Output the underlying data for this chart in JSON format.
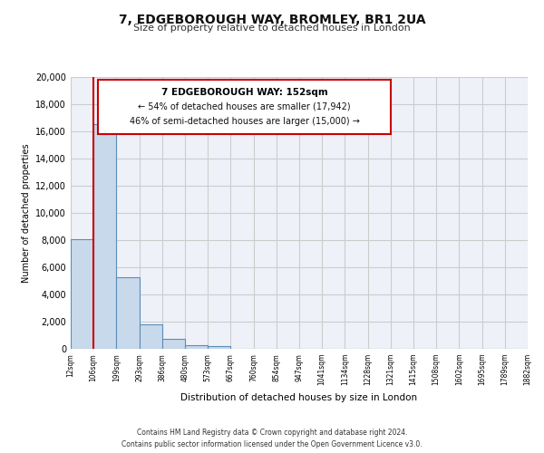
{
  "title": "7, EDGEBOROUGH WAY, BROMLEY, BR1 2UA",
  "subtitle": "Size of property relative to detached houses in London",
  "xlabel": "Distribution of detached houses by size in London",
  "ylabel": "Number of detached properties",
  "bin_labels": [
    "12sqm",
    "106sqm",
    "199sqm",
    "293sqm",
    "386sqm",
    "480sqm",
    "573sqm",
    "667sqm",
    "760sqm",
    "854sqm",
    "947sqm",
    "1041sqm",
    "1134sqm",
    "1228sqm",
    "1321sqm",
    "1415sqm",
    "1508sqm",
    "1602sqm",
    "1695sqm",
    "1789sqm",
    "1882sqm"
  ],
  "bar_values": [
    8100,
    16500,
    5300,
    1800,
    750,
    300,
    200,
    0,
    0,
    0,
    0,
    0,
    0,
    0,
    0,
    0,
    0,
    0,
    0,
    0
  ],
  "bar_color": "#c9d9ec",
  "bar_edge_color": "#5b8db8",
  "red_line_x": 1,
  "red_line_color": "#cc0000",
  "annotation_title": "7 EDGEBOROUGH WAY: 152sqm",
  "annotation_line1": "← 54% of detached houses are smaller (17,942)",
  "annotation_line2": "46% of semi-detached houses are larger (15,000) →",
  "annotation_box_color": "#ffffff",
  "annotation_box_edge": "#cc0000",
  "ylim": [
    0,
    20000
  ],
  "yticks": [
    0,
    2000,
    4000,
    6000,
    8000,
    10000,
    12000,
    14000,
    16000,
    18000,
    20000
  ],
  "grid_color": "#cccccc",
  "bg_color": "#eef2f8",
  "footer1": "Contains HM Land Registry data © Crown copyright and database right 2024.",
  "footer2": "Contains public sector information licensed under the Open Government Licence v3.0."
}
